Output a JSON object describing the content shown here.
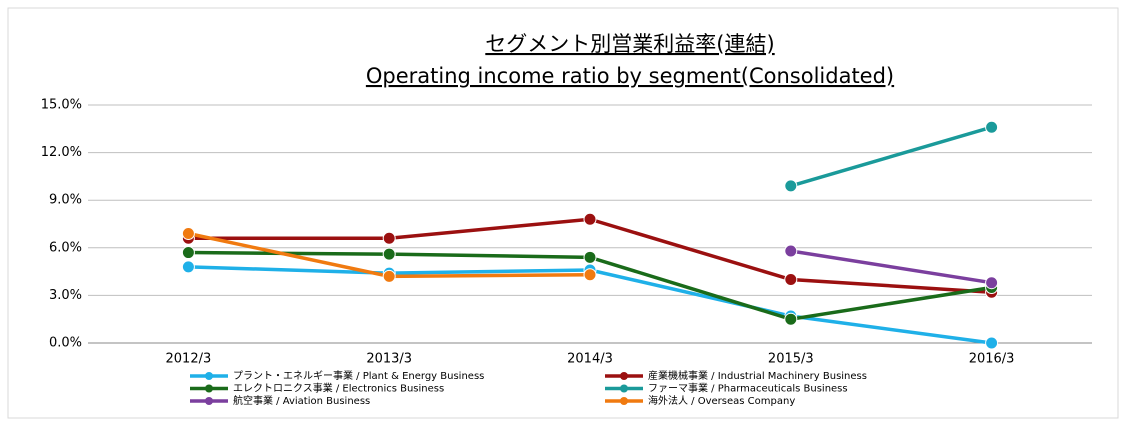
{
  "chart_data": {
    "type": "line",
    "title": "セグメント別営業利益率(連結)",
    "subtitle": "Operating income ratio by segment(Consolidated)",
    "categories": [
      "2012/3",
      "2013/3",
      "2014/3",
      "2015/3",
      "2016/3"
    ],
    "series": [
      {
        "name": "プラント・エネルギー事業 / Plant & Energy Business",
        "color": "#1fb0e8",
        "values": [
          4.8,
          4.4,
          4.6,
          1.7,
          0.0
        ]
      },
      {
        "name": "産業機械事業 / Industrial Machinery Business",
        "color": "#9b1010",
        "values": [
          6.6,
          6.6,
          7.8,
          4.0,
          3.2
        ]
      },
      {
        "name": "エレクトロニクス事業 / Electronics Business",
        "color": "#1a6b1a",
        "values": [
          5.7,
          5.6,
          5.4,
          1.5,
          3.5
        ]
      },
      {
        "name": "ファーマ事業 / Pharmaceuticals Business",
        "color": "#1a9a9a",
        "values": [
          null,
          null,
          null,
          9.9,
          13.6
        ]
      },
      {
        "name": "航空事業 / Aviation Business",
        "color": "#7b3f9e",
        "values": [
          null,
          null,
          null,
          5.8,
          3.8
        ]
      },
      {
        "name": "海外法人 / Overseas Company",
        "color": "#f07a10",
        "values": [
          6.9,
          4.2,
          4.3,
          null,
          null
        ]
      }
    ],
    "ylim": [
      0,
      15
    ],
    "yticks": [
      {
        "value": 0,
        "label": "0.0%"
      },
      {
        "value": 3,
        "label": "3.0%"
      },
      {
        "value": 6,
        "label": "6.0%"
      },
      {
        "value": 9,
        "label": "9.0%"
      },
      {
        "value": 12,
        "label": "12.0%"
      },
      {
        "value": 15,
        "label": "15.0%"
      }
    ],
    "grid": true,
    "legend": "bottom"
  }
}
